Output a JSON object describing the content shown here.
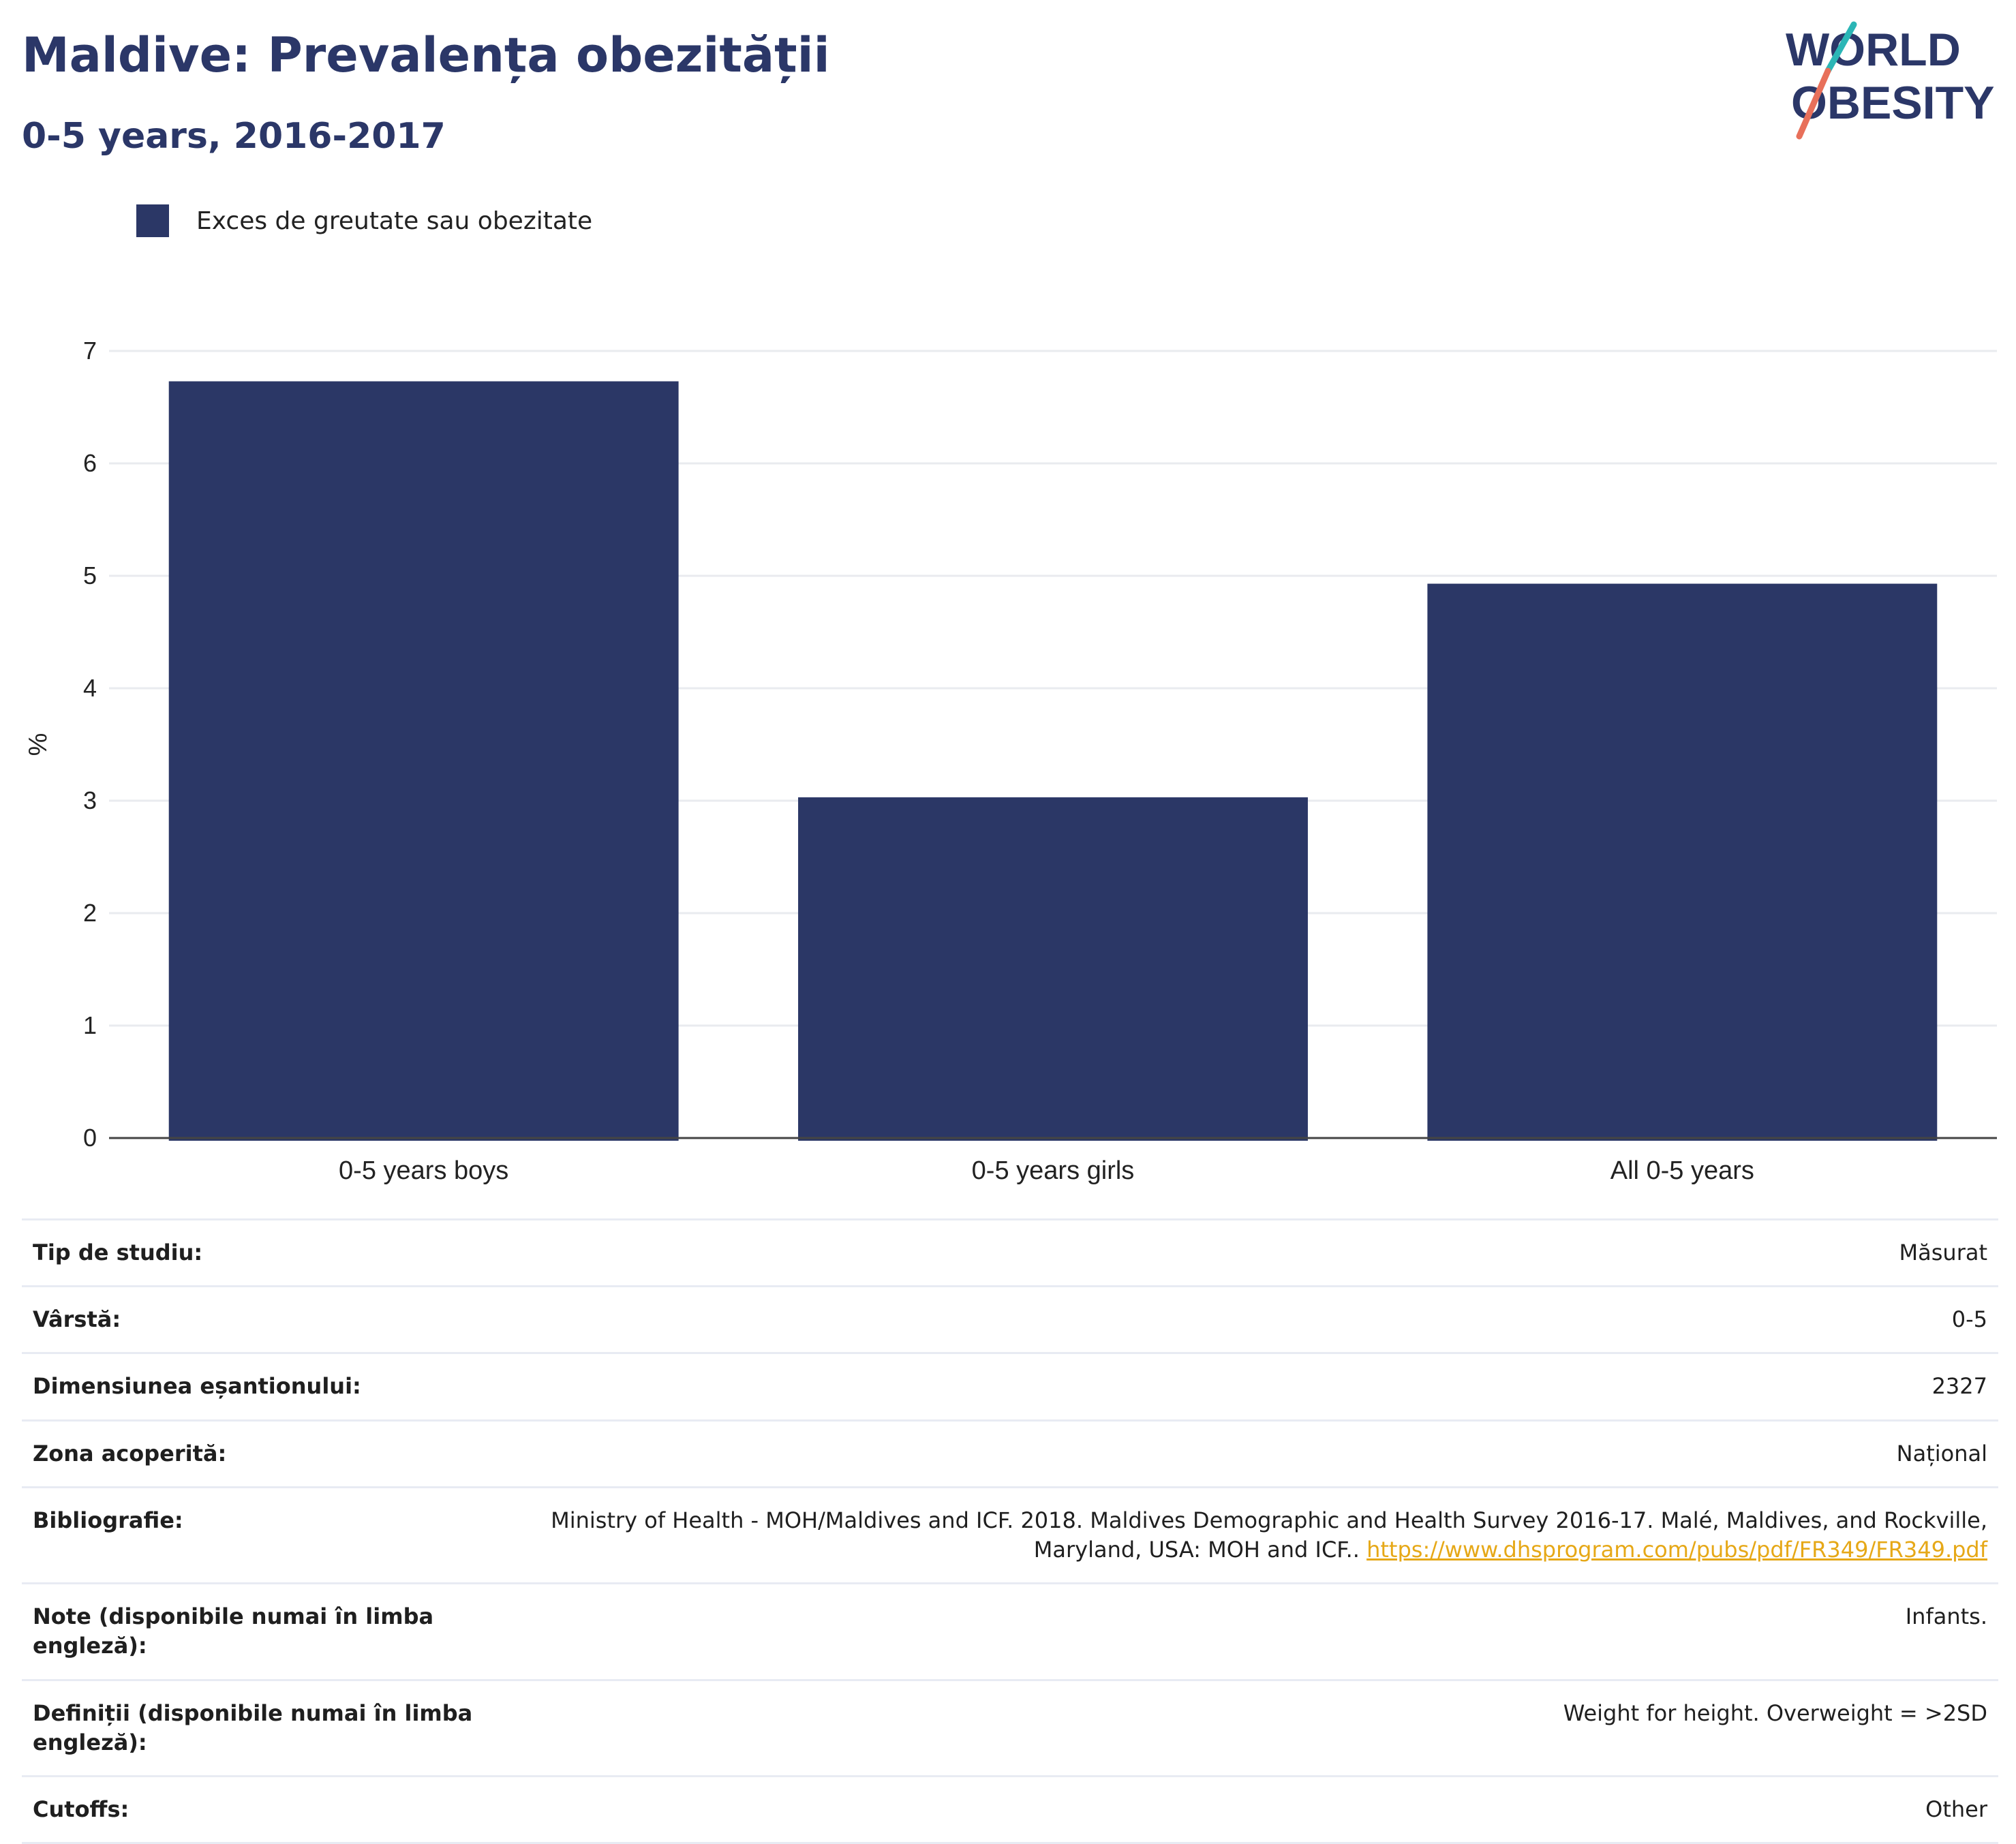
{
  "header": {
    "title": "Maldive: Prevalența obezității",
    "subtitle": "0-5 years, 2016-2017",
    "logo_line1": "WORLD",
    "logo_line2": "OBESITY"
  },
  "legend": {
    "label": "Exces de greutate sau obezitate"
  },
  "colors": {
    "bar": "#2b3766",
    "grid": "#e9ebef",
    "axis": "#444444",
    "link": "#e6a817",
    "logo_teal": "#2bb6b6",
    "logo_coral": "#e8705a",
    "logo_navy": "#2b3768"
  },
  "chart_data": {
    "type": "bar",
    "categories": [
      "0-5 years boys",
      "0-5 years girls",
      "All 0-5 years"
    ],
    "series": [
      {
        "name": "Exces de greutate sau obezitate",
        "values": [
          6.73,
          3.03,
          4.93
        ]
      }
    ],
    "ylabel": "%",
    "ylim": [
      0,
      7
    ],
    "yticks": [
      0,
      1,
      2,
      3,
      4,
      5,
      6,
      7
    ],
    "grid": true,
    "legend_position": "top-left"
  },
  "info": [
    {
      "key": "Tip de studiu:",
      "value": "Măsurat"
    },
    {
      "key": "Vârstă:",
      "value": "0-5"
    },
    {
      "key": "Dimensiunea eșantionului:",
      "value": "2327"
    },
    {
      "key": "Zona acoperită:",
      "value": "Național"
    },
    {
      "key": "Bibliografie:",
      "value": "Ministry of Health - MOH/Maldives and ICF. 2018. Maldives Demographic and Health Survey 2016-17. Malé, Maldives, and Rockville, Maryland, USA: MOH and ICF..",
      "link": "https://www.dhsprogram.com/pubs/pdf/FR349/FR349.pdf"
    },
    {
      "key": "Note (disponibile numai în limba engleză):",
      "value": "Infants."
    },
    {
      "key": "Definiții (disponibile numai în limba engleză):",
      "value": "Weight for height. Overweight = >2SD"
    },
    {
      "key": "Cutoffs:",
      "value": "Other"
    }
  ]
}
